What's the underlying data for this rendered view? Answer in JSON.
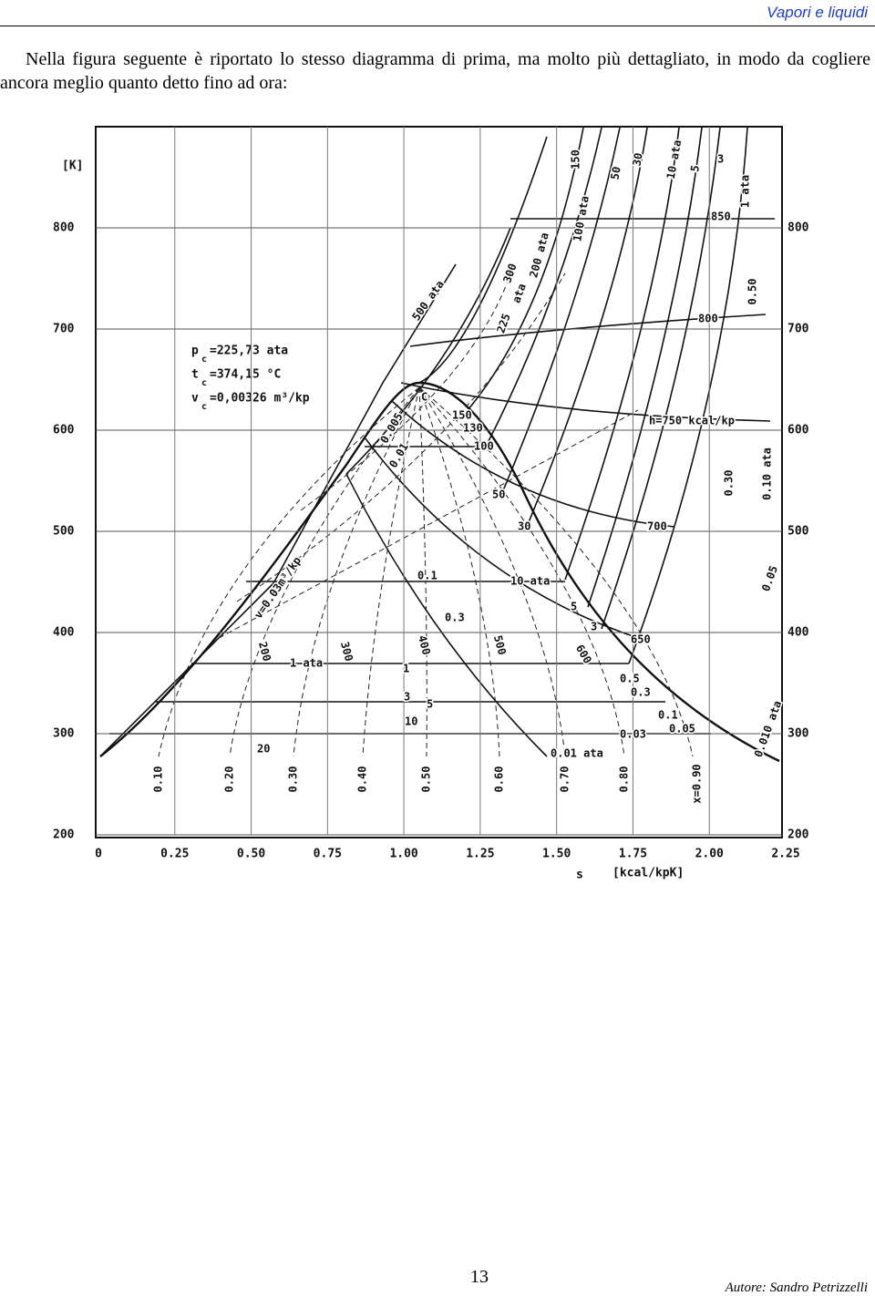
{
  "header": {
    "title": "Vapori e liquidi"
  },
  "body": {
    "paragraph": "Nella figura seguente è riportato lo stesso diagramma di prima, ma molto più dettagliato, in modo da cogliere ancora meglio quanto detto fino ad ora:"
  },
  "chart_data": {
    "type": "line",
    "x_label": "s",
    "x_unit": "[kcal/kpK]",
    "y_label": "[K]",
    "xlim": [
      0,
      2.25
    ],
    "xticks": [
      0,
      0.25,
      {
        "value": 0.5,
        "label": "0.50"
      },
      0.75,
      {
        "value": 1,
        "label": "1.00"
      },
      1.25,
      {
        "value": 1.5,
        "label": "1.50"
      },
      1.75,
      {
        "value": 2,
        "label": "2.00"
      },
      2.25
    ],
    "ylim": [
      200,
      900
    ],
    "yticks": [
      200,
      300,
      400,
      500,
      600,
      700,
      800
    ],
    "grid": true,
    "critical_point": [
      {
        "symbol": "p",
        "subscript": "c",
        "text": "=225,73 ata"
      },
      {
        "symbol": "t",
        "subscript": "c",
        "text": "=374,15 °C"
      },
      {
        "symbol": "v",
        "subscript": "c",
        "text": "=0,00326 m³/kp"
      }
    ],
    "annotations": [
      "150",
      "50",
      "30",
      "10 ata",
      "5",
      "3",
      "1 ata",
      "100 ata",
      "200 ata",
      "300",
      "ata",
      "500 ata",
      "225",
      "850",
      "800",
      "0.50",
      "h=750 kcal/kp",
      "700",
      "650",
      "0.30",
      "0.10 ata",
      "0.05",
      "0.010 ata",
      "C",
      "0.005",
      "0.01",
      "150",
      "130",
      "100",
      "50",
      "30",
      "0.1",
      "10 ata",
      "5",
      "3",
      "0.3",
      "0.5",
      "0.3",
      "0.1",
      "0.05",
      "0.03",
      "0.01 ata",
      "1 ata",
      "1",
      "3",
      "5",
      "10",
      "20",
      "v=0.03m³/kp",
      "200",
      "300",
      "400",
      "500",
      "600",
      "x=0.90",
      "0.10",
      "0.20",
      "0.30",
      "0.40",
      "0.50",
      "0.60",
      "0.70",
      "0.80"
    ]
  },
  "footer": {
    "page": "13",
    "author": "Autore: Sandro Petrizzelli"
  }
}
